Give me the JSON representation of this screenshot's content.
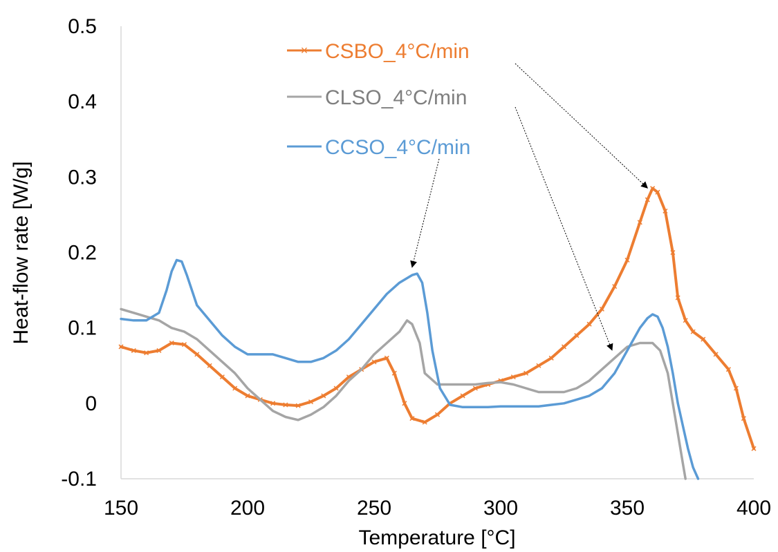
{
  "chart_data": {
    "type": "line",
    "title": "",
    "xlabel": "Temperature [°C]",
    "ylabel": "Heat-flow rate [W/g]",
    "xlim": [
      150,
      400
    ],
    "ylim": [
      -0.1,
      0.5
    ],
    "x_ticks": [
      "150",
      "200",
      "250",
      "300",
      "350",
      "400"
    ],
    "y_ticks": [
      "-0.1",
      "0",
      "0.1",
      "0.2",
      "0.3",
      "0.4",
      "0.5"
    ],
    "grid": false,
    "series": [
      {
        "name": "CSBO_4°C/min",
        "color": "#ED7D31",
        "marker": "x",
        "x": [
          150,
          155,
          160,
          165,
          170,
          175,
          180,
          185,
          190,
          195,
          200,
          205,
          210,
          215,
          220,
          225,
          230,
          235,
          240,
          245,
          250,
          255,
          258,
          262,
          265,
          270,
          275,
          280,
          285,
          290,
          295,
          300,
          305,
          310,
          315,
          320,
          325,
          330,
          335,
          340,
          345,
          350,
          355,
          358,
          360,
          362,
          365,
          368,
          370,
          373,
          376,
          380,
          385,
          390,
          393,
          396,
          400
        ],
        "y": [
          0.075,
          0.07,
          0.067,
          0.07,
          0.08,
          0.078,
          0.065,
          0.05,
          0.035,
          0.02,
          0.01,
          0.005,
          0.0,
          -0.002,
          -0.003,
          0.002,
          0.01,
          0.02,
          0.035,
          0.045,
          0.055,
          0.06,
          0.04,
          0.0,
          -0.02,
          -0.025,
          -0.015,
          0.0,
          0.01,
          0.02,
          0.025,
          0.03,
          0.035,
          0.04,
          0.05,
          0.06,
          0.075,
          0.09,
          0.105,
          0.125,
          0.155,
          0.19,
          0.24,
          0.27,
          0.285,
          0.28,
          0.255,
          0.2,
          0.14,
          0.11,
          0.095,
          0.085,
          0.065,
          0.045,
          0.02,
          -0.02,
          -0.06
        ]
      },
      {
        "name": "CLSO_4°C/min",
        "color": "#A5A5A5",
        "marker": "none",
        "x": [
          150,
          155,
          160,
          165,
          170,
          175,
          180,
          185,
          190,
          195,
          200,
          205,
          210,
          215,
          220,
          225,
          230,
          235,
          240,
          245,
          250,
          255,
          260,
          263,
          265,
          268,
          270,
          275,
          280,
          285,
          290,
          295,
          300,
          305,
          310,
          315,
          320,
          325,
          330,
          335,
          340,
          345,
          350,
          355,
          360,
          363,
          366,
          368,
          370,
          372,
          373
        ],
        "y": [
          0.125,
          0.12,
          0.115,
          0.11,
          0.1,
          0.095,
          0.085,
          0.07,
          0.055,
          0.04,
          0.02,
          0.005,
          -0.01,
          -0.018,
          -0.022,
          -0.015,
          -0.005,
          0.01,
          0.03,
          0.045,
          0.065,
          0.08,
          0.095,
          0.11,
          0.105,
          0.08,
          0.04,
          0.025,
          0.025,
          0.025,
          0.025,
          0.027,
          0.028,
          0.025,
          0.02,
          0.015,
          0.015,
          0.015,
          0.02,
          0.03,
          0.045,
          0.06,
          0.075,
          0.08,
          0.08,
          0.07,
          0.04,
          0.0,
          -0.04,
          -0.08,
          -0.1
        ]
      },
      {
        "name": "CCSO_4°C/min",
        "color": "#5B9BD5",
        "marker": "none",
        "x": [
          150,
          155,
          160,
          165,
          168,
          170,
          172,
          174,
          176,
          178,
          180,
          185,
          190,
          195,
          200,
          205,
          210,
          215,
          220,
          225,
          230,
          235,
          240,
          245,
          250,
          255,
          260,
          265,
          267,
          269,
          271,
          273,
          276,
          280,
          285,
          290,
          295,
          300,
          305,
          310,
          315,
          320,
          325,
          330,
          335,
          340,
          345,
          350,
          355,
          358,
          360,
          362,
          364,
          366,
          368,
          370,
          372,
          374,
          376,
          378
        ],
        "y": [
          0.112,
          0.11,
          0.11,
          0.12,
          0.15,
          0.175,
          0.19,
          0.188,
          0.17,
          0.15,
          0.13,
          0.11,
          0.09,
          0.075,
          0.065,
          0.065,
          0.065,
          0.06,
          0.055,
          0.055,
          0.06,
          0.07,
          0.085,
          0.105,
          0.125,
          0.145,
          0.16,
          0.17,
          0.172,
          0.16,
          0.12,
          0.07,
          0.02,
          -0.002,
          -0.005,
          -0.005,
          -0.005,
          -0.004,
          -0.004,
          -0.004,
          -0.004,
          -0.002,
          0.0,
          0.005,
          0.01,
          0.02,
          0.04,
          0.07,
          0.1,
          0.113,
          0.118,
          0.115,
          0.1,
          0.075,
          0.04,
          0.0,
          -0.03,
          -0.06,
          -0.085,
          -0.1
        ]
      }
    ],
    "legend": {
      "placement": "top-center"
    },
    "annotations": [
      {
        "type": "arrow",
        "from_label": "CSBO_4°C/min",
        "to": {
          "x": 358,
          "y": 0.28
        }
      },
      {
        "type": "arrow",
        "from_label": "CLSO_4°C/min",
        "to": {
          "x": 344,
          "y": 0.065
        }
      },
      {
        "type": "arrow",
        "from_label": "CCSO_4°C/min",
        "to": {
          "x": 265,
          "y": 0.175
        }
      }
    ]
  }
}
